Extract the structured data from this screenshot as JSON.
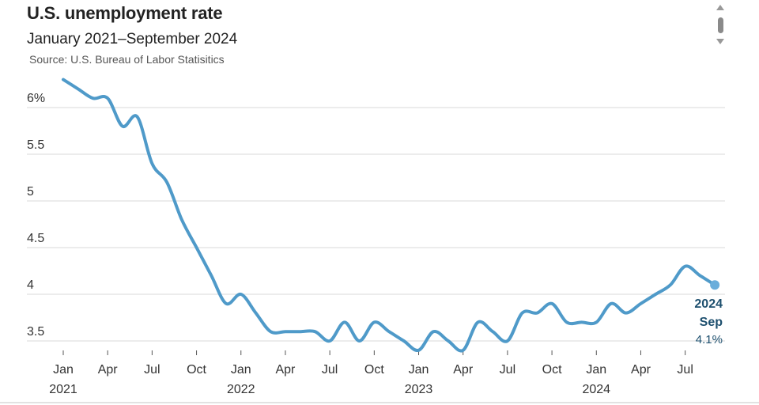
{
  "header": {
    "title": "U.S. unemployment rate",
    "subtitle": "January 2021–September 2024",
    "source": "Source: U.S. Bureau of Labor Statisitics"
  },
  "colors": {
    "line": "#4f9ac9",
    "endpoint": "#6baedb",
    "label": "#1d4f6e",
    "grid": "#d9d9d9"
  },
  "chart_data": {
    "type": "line",
    "title": "U.S. unemployment rate",
    "subtitle": "January 2021–September 2024",
    "xlabel": "",
    "ylabel": "",
    "ylim": [
      3.4,
      6.3
    ],
    "y_ticks": [
      {
        "value": 6,
        "label": "6%"
      },
      {
        "value": 5.5,
        "label": "5.5"
      },
      {
        "value": 5,
        "label": "5"
      },
      {
        "value": 4.5,
        "label": "4.5"
      },
      {
        "value": 4,
        "label": "4"
      },
      {
        "value": 3.5,
        "label": "3.5"
      }
    ],
    "x_ticks": [
      {
        "index": 0,
        "label": "Jan",
        "year": "2021"
      },
      {
        "index": 3,
        "label": "Apr",
        "year": ""
      },
      {
        "index": 6,
        "label": "Jul",
        "year": ""
      },
      {
        "index": 9,
        "label": "Oct",
        "year": ""
      },
      {
        "index": 12,
        "label": "Jan",
        "year": "2022"
      },
      {
        "index": 15,
        "label": "Apr",
        "year": ""
      },
      {
        "index": 18,
        "label": "Jul",
        "year": ""
      },
      {
        "index": 21,
        "label": "Oct",
        "year": ""
      },
      {
        "index": 24,
        "label": "Jan",
        "year": "2023"
      },
      {
        "index": 27,
        "label": "Apr",
        "year": ""
      },
      {
        "index": 30,
        "label": "Jul",
        "year": ""
      },
      {
        "index": 33,
        "label": "Oct",
        "year": ""
      },
      {
        "index": 36,
        "label": "Jan",
        "year": "2024"
      },
      {
        "index": 39,
        "label": "Apr",
        "year": ""
      },
      {
        "index": 42,
        "label": "Jul",
        "year": ""
      }
    ],
    "x": [
      "2021-01",
      "2021-02",
      "2021-03",
      "2021-04",
      "2021-05",
      "2021-06",
      "2021-07",
      "2021-08",
      "2021-09",
      "2021-10",
      "2021-11",
      "2021-12",
      "2022-01",
      "2022-02",
      "2022-03",
      "2022-04",
      "2022-05",
      "2022-06",
      "2022-07",
      "2022-08",
      "2022-09",
      "2022-10",
      "2022-11",
      "2022-12",
      "2023-01",
      "2023-02",
      "2023-03",
      "2023-04",
      "2023-05",
      "2023-06",
      "2023-07",
      "2023-08",
      "2023-09",
      "2023-10",
      "2023-11",
      "2023-12",
      "2024-01",
      "2024-02",
      "2024-03",
      "2024-04",
      "2024-05",
      "2024-06",
      "2024-07",
      "2024-08",
      "2024-09"
    ],
    "series": [
      {
        "values": [
          6.3,
          6.2,
          6.1,
          6.1,
          5.8,
          5.9,
          5.4,
          5.2,
          4.8,
          4.5,
          4.2,
          3.9,
          4.0,
          3.8,
          3.6,
          3.6,
          3.6,
          3.6,
          3.5,
          3.7,
          3.5,
          3.7,
          3.6,
          3.5,
          3.4,
          3.6,
          3.5,
          3.4,
          3.7,
          3.6,
          3.5,
          3.8,
          3.8,
          3.9,
          3.7,
          3.7,
          3.7,
          3.9,
          3.8,
          3.9,
          4.0,
          4.1,
          4.3,
          4.2,
          4.1
        ]
      }
    ],
    "grid": true,
    "end_label": {
      "year": "2024",
      "month": "Sep",
      "value": "4.1%"
    }
  }
}
